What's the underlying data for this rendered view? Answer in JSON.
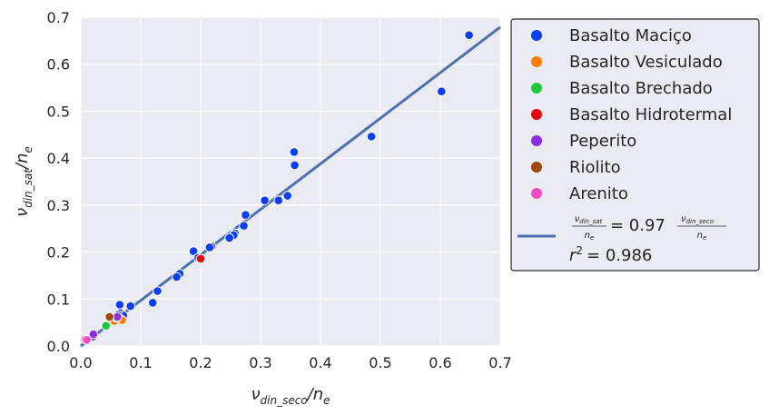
{
  "chart_data": {
    "type": "scatter",
    "xlabel_main": "ν",
    "xlabel_sub": "din_seco",
    "xlabel_tail": "/n",
    "xlabel_tail_sub": "e",
    "ylabel_main": "ν",
    "ylabel_sub": "din_sat",
    "ylabel_tail": "/n",
    "ylabel_tail_sub": "e",
    "xlim": [
      0,
      0.7
    ],
    "ylim": [
      0,
      0.7
    ],
    "xticks": [
      "0.0",
      "0.1",
      "0.2",
      "0.3",
      "0.4",
      "0.5",
      "0.6",
      "0.7"
    ],
    "yticks": [
      "0.0",
      "0.1",
      "0.2",
      "0.3",
      "0.4",
      "0.5",
      "0.6",
      "0.7"
    ],
    "grid": true,
    "legend_position": "outside-right",
    "series": [
      {
        "name": "Basalto Maciço",
        "color": "#0b3ef5",
        "points": [
          [
            0.648,
            0.662
          ],
          [
            0.602,
            0.542
          ],
          [
            0.485,
            0.446
          ],
          [
            0.356,
            0.413
          ],
          [
            0.357,
            0.385
          ],
          [
            0.345,
            0.32
          ],
          [
            0.33,
            0.31
          ],
          [
            0.307,
            0.31
          ],
          [
            0.275,
            0.279
          ],
          [
            0.272,
            0.256
          ],
          [
            0.257,
            0.24
          ],
          [
            0.255,
            0.236
          ],
          [
            0.248,
            0.23
          ],
          [
            0.218,
            0.212
          ],
          [
            0.215,
            0.21
          ],
          [
            0.188,
            0.202
          ],
          [
            0.196,
            0.188
          ],
          [
            0.165,
            0.154
          ],
          [
            0.16,
            0.147
          ],
          [
            0.128,
            0.117
          ],
          [
            0.12,
            0.092
          ],
          [
            0.083,
            0.085
          ],
          [
            0.065,
            0.088
          ],
          [
            0.066,
            0.07
          ],
          [
            0.071,
            0.065
          ],
          [
            0.056,
            0.058
          ],
          [
            0.062,
            0.066
          ]
        ]
      },
      {
        "name": "Basalto Vesiculado",
        "color": "#ff7c00",
        "points": [
          [
            0.069,
            0.055
          ],
          [
            0.056,
            0.053
          ],
          [
            0.06,
            0.06
          ]
        ]
      },
      {
        "name": "Basalto Brechado",
        "color": "#1ac938",
        "points": [
          [
            0.042,
            0.043
          ]
        ]
      },
      {
        "name": "Basalto Hidrotermal",
        "color": "#e8000b",
        "points": [
          [
            0.2,
            0.186
          ]
        ]
      },
      {
        "name": "Peperito",
        "color": "#8b2be2",
        "points": [
          [
            0.02,
            0.02
          ],
          [
            0.021,
            0.025
          ],
          [
            0.061,
            0.062
          ]
        ]
      },
      {
        "name": "Riolito",
        "color": "#9f4800",
        "points": [
          [
            0.048,
            0.062
          ]
        ]
      },
      {
        "name": "Arenito",
        "color": "#f14cc1",
        "points": [
          [
            0.007,
            0.014
          ],
          [
            0.01,
            0.013
          ]
        ]
      }
    ],
    "fit_line": {
      "slope": 0.97,
      "color": "#4c72b0",
      "label_lhs_num": "ν",
      "label_lhs_num_sub": "din_sat",
      "label_lhs_den": "n",
      "label_lhs_den_sub": "e",
      "label_eq": "= 0.97",
      "label_rhs_num": "ν",
      "label_rhs_num_sub": "din_seco",
      "label_rhs_den": "n",
      "label_rhs_den_sub": "e",
      "r2_label": "r",
      "r2_exp": "2",
      "r2_value": "= 0.986"
    }
  }
}
